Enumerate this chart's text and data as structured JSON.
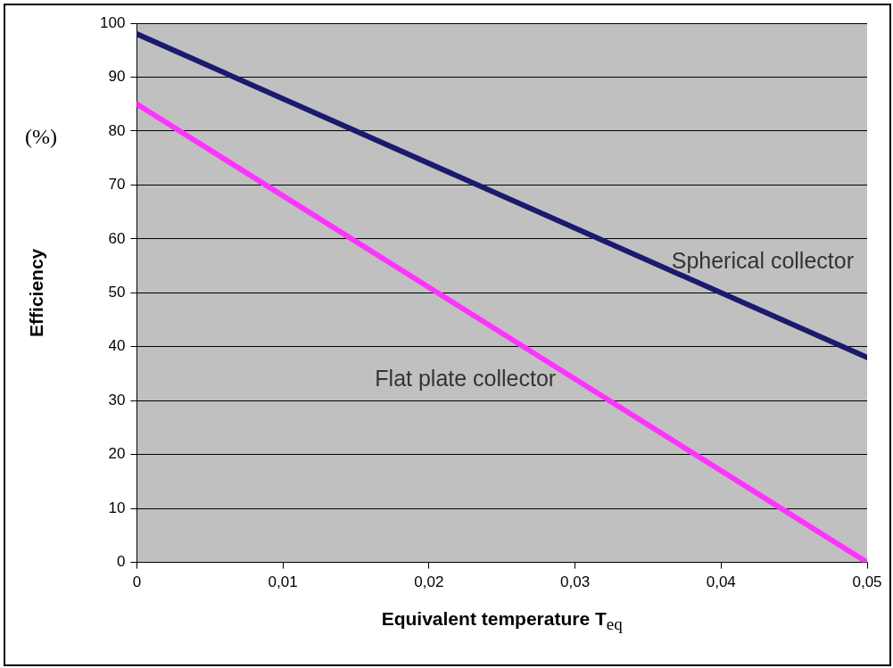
{
  "chart_data": {
    "type": "line",
    "xlabel": "Equivalent temperature T$_{eq}$",
    "ylabel": "Efficiency",
    "annotations": [
      "(%)"
    ],
    "x": [
      0,
      0.05
    ],
    "series": [
      {
        "name": "Spherical collector",
        "color": "#1a1a6e",
        "values": [
          98,
          38
        ]
      },
      {
        "name": "Flat plate collector",
        "color": "#ff33ff",
        "values": [
          85,
          0
        ]
      }
    ],
    "xlim": [
      0,
      0.05
    ],
    "xticks": [
      0,
      {
        "value": 0.01,
        "label": "0,01"
      },
      {
        "value": 0.02,
        "label": "0,02"
      },
      {
        "value": 0.03,
        "label": "0,03"
      },
      {
        "value": 0.04,
        "label": "0,04"
      },
      {
        "value": 0.05,
        "label": "0,05"
      }
    ],
    "ylim": [
      0,
      100
    ],
    "yticks": [
      0,
      10,
      20,
      30,
      40,
      50,
      60,
      70,
      80,
      90,
      100
    ],
    "grid": "y",
    "legend": false,
    "marker": "none",
    "line_style": "solid"
  }
}
